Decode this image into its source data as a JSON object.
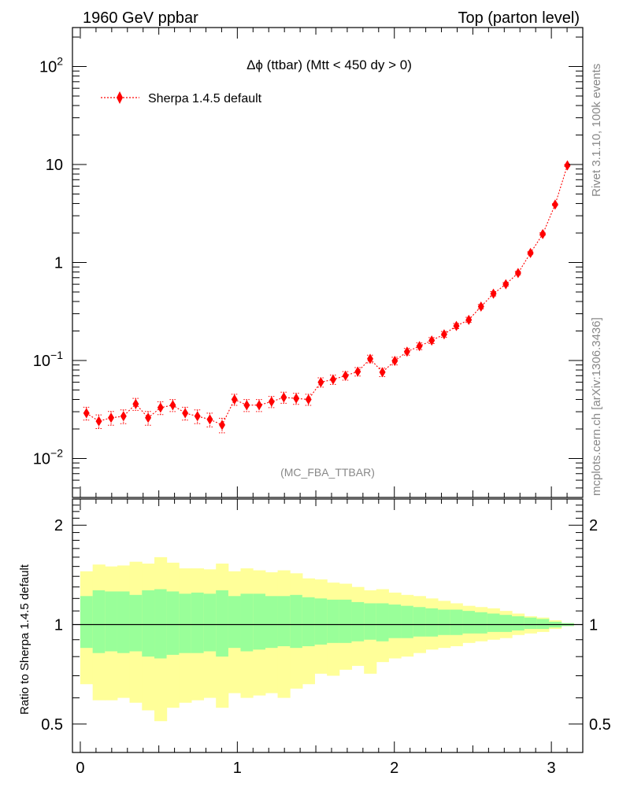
{
  "header": {
    "left": "1960 GeV ppbar",
    "right": "Top (parton level)"
  },
  "side_text": {
    "rivet": "Rivet 3.1.10,  100k events",
    "mcplots": "mcplots.cern.ch [arXiv:1306.3436]"
  },
  "chart_data": [
    {
      "type": "scatter",
      "title": "Δϕ (ttbar) (Mtt < 450 dy > 0)",
      "analysis_label": "(MC_FBA_TTBAR)",
      "yscale": "log",
      "ylim": [
        0.004,
        250
      ],
      "xlim": [
        -0.05,
        3.2
      ],
      "y_tick_labels": [
        "10^-2",
        "10^-1",
        "1",
        "10",
        "10^2"
      ],
      "legend": {
        "placement": "top-left",
        "entries": [
          "Sherpa 1.4.5 default"
        ]
      },
      "color": "#ff0000",
      "marker": "diamond",
      "line_style": "dotted",
      "series": [
        {
          "name": "Sherpa 1.4.5 default",
          "x": [
            0.039,
            0.118,
            0.196,
            0.275,
            0.353,
            0.432,
            0.511,
            0.589,
            0.668,
            0.746,
            0.825,
            0.903,
            0.982,
            1.06,
            1.139,
            1.218,
            1.296,
            1.375,
            1.453,
            1.532,
            1.61,
            1.689,
            1.767,
            1.846,
            1.924,
            2.003,
            2.081,
            2.16,
            2.238,
            2.317,
            2.395,
            2.474,
            2.552,
            2.631,
            2.71,
            2.788,
            2.867,
            2.945,
            3.024,
            3.102
          ],
          "y": [
            0.029,
            0.024,
            0.026,
            0.027,
            0.036,
            0.026,
            0.033,
            0.035,
            0.029,
            0.027,
            0.025,
            0.022,
            0.04,
            0.035,
            0.035,
            0.038,
            0.042,
            0.041,
            0.04,
            0.06,
            0.064,
            0.07,
            0.077,
            0.104,
            0.076,
            0.099,
            0.123,
            0.14,
            0.16,
            0.185,
            0.225,
            0.26,
            0.355,
            0.48,
            0.6,
            0.78,
            1.25,
            1.95,
            3.9,
            9.8
          ],
          "yerr_rel": [
            0.15,
            0.16,
            0.16,
            0.16,
            0.14,
            0.16,
            0.15,
            0.14,
            0.15,
            0.16,
            0.16,
            0.17,
            0.13,
            0.14,
            0.14,
            0.13,
            0.13,
            0.13,
            0.13,
            0.11,
            0.11,
            0.1,
            0.1,
            0.09,
            0.1,
            0.09,
            0.08,
            0.08,
            0.07,
            0.07,
            0.06,
            0.06,
            0.05,
            0.05,
            0.04,
            0.04,
            0.03,
            0.03,
            0.02,
            0.02
          ]
        }
      ]
    },
    {
      "type": "area",
      "ylabel": "Ratio to Sherpa 1.4.5 default",
      "yscale": "log",
      "ylim": [
        0.41,
        2.4
      ],
      "xlim": [
        -0.05,
        3.2
      ],
      "y_tick_labels": [
        "0.5",
        "1",
        "2"
      ],
      "x_tick_labels": [
        "0",
        "1",
        "2",
        "3"
      ],
      "reference_line": 1,
      "bands": {
        "inner_color": "#99ff99",
        "outer_color": "#ffff99",
        "bin_width": 0.0785,
        "x": [
          0.039,
          0.118,
          0.196,
          0.275,
          0.353,
          0.432,
          0.511,
          0.589,
          0.668,
          0.746,
          0.825,
          0.903,
          0.982,
          1.06,
          1.139,
          1.218,
          1.296,
          1.375,
          1.453,
          1.532,
          1.61,
          1.689,
          1.767,
          1.846,
          1.924,
          2.003,
          2.081,
          2.16,
          2.238,
          2.317,
          2.395,
          2.474,
          2.552,
          2.631,
          2.71,
          2.788,
          2.867,
          2.945,
          3.024,
          3.102
        ],
        "inner_up": [
          1.22,
          1.27,
          1.26,
          1.26,
          1.23,
          1.27,
          1.28,
          1.26,
          1.24,
          1.25,
          1.24,
          1.27,
          1.22,
          1.24,
          1.24,
          1.22,
          1.22,
          1.23,
          1.21,
          1.2,
          1.19,
          1.19,
          1.17,
          1.16,
          1.16,
          1.15,
          1.14,
          1.13,
          1.12,
          1.11,
          1.11,
          1.1,
          1.09,
          1.08,
          1.07,
          1.06,
          1.05,
          1.04,
          1.02,
          1.01
        ],
        "inner_dn": [
          0.85,
          0.82,
          0.83,
          0.82,
          0.83,
          0.8,
          0.79,
          0.81,
          0.82,
          0.82,
          0.83,
          0.8,
          0.85,
          0.83,
          0.84,
          0.85,
          0.86,
          0.85,
          0.86,
          0.87,
          0.88,
          0.88,
          0.89,
          0.9,
          0.89,
          0.91,
          0.91,
          0.92,
          0.92,
          0.93,
          0.93,
          0.94,
          0.94,
          0.95,
          0.95,
          0.96,
          0.97,
          0.97,
          0.98,
          0.99
        ],
        "outer_up": [
          1.45,
          1.52,
          1.5,
          1.51,
          1.55,
          1.53,
          1.6,
          1.54,
          1.48,
          1.48,
          1.47,
          1.53,
          1.45,
          1.48,
          1.46,
          1.44,
          1.46,
          1.43,
          1.38,
          1.37,
          1.34,
          1.33,
          1.3,
          1.27,
          1.28,
          1.25,
          1.23,
          1.22,
          1.2,
          1.18,
          1.16,
          1.14,
          1.13,
          1.12,
          1.1,
          1.08,
          1.06,
          1.05,
          1.03,
          1.01
        ],
        "outer_dn": [
          0.66,
          0.59,
          0.59,
          0.6,
          0.58,
          0.55,
          0.51,
          0.56,
          0.58,
          0.59,
          0.6,
          0.56,
          0.62,
          0.6,
          0.61,
          0.62,
          0.6,
          0.64,
          0.66,
          0.71,
          0.7,
          0.73,
          0.75,
          0.71,
          0.77,
          0.79,
          0.8,
          0.82,
          0.84,
          0.85,
          0.86,
          0.88,
          0.89,
          0.9,
          0.91,
          0.93,
          0.94,
          0.95,
          0.97,
          0.99
        ]
      }
    }
  ]
}
